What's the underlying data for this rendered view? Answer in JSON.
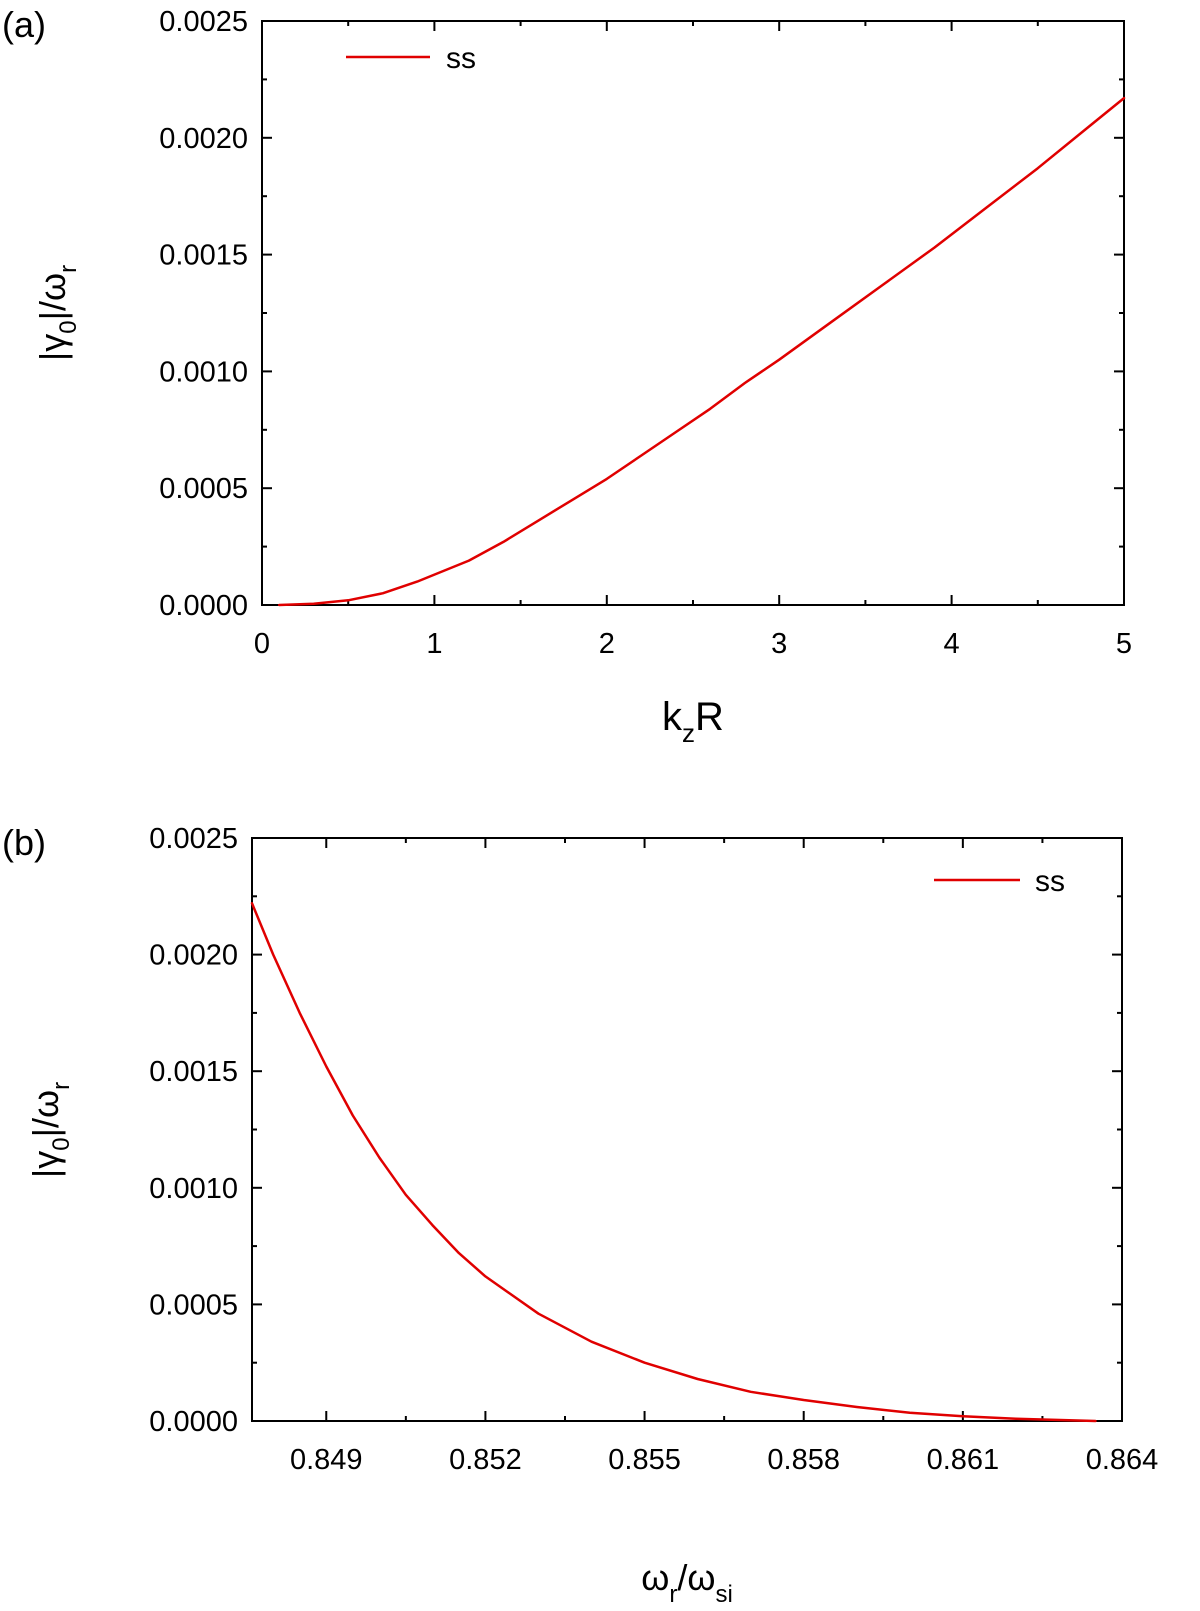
{
  "chart_data": [
    {
      "panel": "(a)",
      "type": "line",
      "xlabel": {
        "main": "k",
        "sub": "z",
        "rest": "R"
      },
      "ylabel": {
        "pre": "|γ",
        "sub1": "0",
        "mid": "|/ω",
        "sub2": "r"
      },
      "xlim": [
        0,
        5
      ],
      "ylim": [
        0,
        0.0025
      ],
      "xticks": [
        0,
        1,
        2,
        3,
        4,
        5
      ],
      "xtick_labels": [
        "0",
        "1",
        "2",
        "3",
        "4",
        "5"
      ],
      "yticks": [
        0,
        0.0005,
        0.001,
        0.0015,
        0.002,
        0.0025
      ],
      "ytick_labels": [
        "0.0000",
        "0.0005",
        "0.0010",
        "0.0015",
        "0.0020",
        "0.0025"
      ],
      "legend": {
        "position": "top-left"
      },
      "series": [
        {
          "name": "ss",
          "color": "#e00000",
          "x": [
            0.1,
            0.3,
            0.5,
            0.7,
            0.9,
            1.0,
            1.2,
            1.4,
            1.6,
            1.8,
            2.0,
            2.2,
            2.4,
            2.6,
            2.8,
            3.0,
            3.3,
            3.6,
            3.9,
            4.2,
            4.5,
            4.8,
            5.0
          ],
          "y": [
            0.0,
            5e-06,
            2e-05,
            5e-05,
            0.0001,
            0.00013,
            0.00019,
            0.00027,
            0.00036,
            0.00045,
            0.00054,
            0.00064,
            0.00074,
            0.00084,
            0.00095,
            0.00105,
            0.00121,
            0.00137,
            0.00153,
            0.0017,
            0.00187,
            0.00205,
            0.00217
          ]
        }
      ]
    },
    {
      "panel": "(b)",
      "type": "line",
      "xlabel": {
        "main": "ω",
        "sub": "r",
        "mid": "/ω",
        "sub2": "si"
      },
      "ylabel": {
        "pre": "|γ",
        "sub1": "0",
        "mid": "|/ω",
        "sub2": "r"
      },
      "xlim": [
        0.8476,
        0.864
      ],
      "ylim": [
        0,
        0.0025
      ],
      "xticks": [
        0.849,
        0.852,
        0.855,
        0.858,
        0.861,
        0.864
      ],
      "xtick_labels": [
        "0.849",
        "0.852",
        "0.855",
        "0.858",
        "0.861",
        "0.864"
      ],
      "yticks": [
        0,
        0.0005,
        0.001,
        0.0015,
        0.002,
        0.0025
      ],
      "ytick_labels": [
        "0.0000",
        "0.0005",
        "0.0010",
        "0.0015",
        "0.0020",
        "0.0025"
      ],
      "legend": {
        "position": "top-right"
      },
      "series": [
        {
          "name": "ss",
          "color": "#e00000",
          "x": [
            0.8476,
            0.848,
            0.8485,
            0.849,
            0.8495,
            0.85,
            0.8505,
            0.851,
            0.8515,
            0.852,
            0.853,
            0.854,
            0.855,
            0.856,
            0.857,
            0.858,
            0.859,
            0.86,
            0.861,
            0.862,
            0.863,
            0.8635
          ],
          "y": [
            0.00222,
            0.002,
            0.00175,
            0.00152,
            0.00131,
            0.00113,
            0.00097,
            0.00084,
            0.00072,
            0.00062,
            0.00046,
            0.00034,
            0.00025,
            0.00018,
            0.000125,
            9e-05,
            6e-05,
            3.5e-05,
            2e-05,
            1e-05,
            3e-06,
            0.0
          ]
        }
      ]
    }
  ]
}
